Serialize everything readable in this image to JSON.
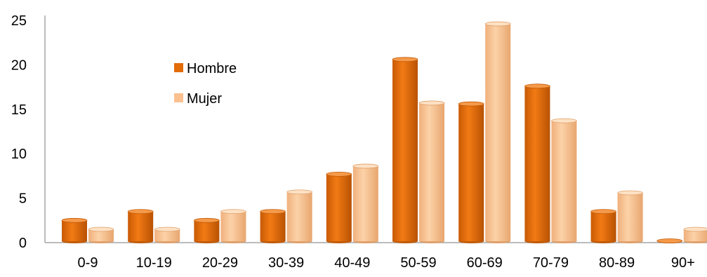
{
  "chart_data": {
    "type": "bar",
    "categories": [
      "0-9",
      "10-19",
      "20-29",
      "30-39",
      "40-49",
      "50-59",
      "60-69",
      "70-79",
      "80-89",
      "90+"
    ],
    "series": [
      {
        "name": "Hombre",
        "values": [
          2.5,
          3.5,
          2.5,
          3.5,
          7.7,
          20.6,
          15.6,
          17.6,
          3.5,
          0.2
        ]
      },
      {
        "name": "Mujer",
        "values": [
          1.5,
          1.5,
          3.5,
          5.7,
          8.6,
          15.7,
          24.6,
          13.7,
          5.6,
          1.5
        ]
      }
    ],
    "yticks": [
      "0",
      "5",
      "10",
      "15",
      "20",
      "25"
    ],
    "ylim": [
      0,
      25
    ],
    "title": "",
    "xlabel": "",
    "ylabel": "",
    "grid": false,
    "legend": "upper-left",
    "colors": {
      "Hombre": "#e36c09",
      "Mujer": "#fac090",
      "axis": "#a6a6a6"
    }
  }
}
